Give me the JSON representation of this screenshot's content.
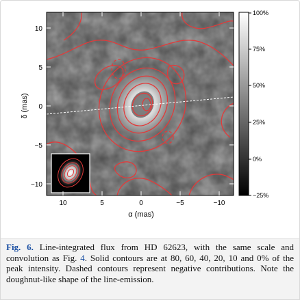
{
  "figure": {
    "x_axis": {
      "label": "α (mas)",
      "ticks": [
        "10",
        "5",
        "0",
        "−5",
        "−10"
      ]
    },
    "y_axis": {
      "label": "δ (mas)",
      "ticks": [
        "10",
        "5",
        "0",
        "−5",
        "−10"
      ]
    },
    "colorbar": {
      "ticks": [
        "100%",
        "75%",
        "50%",
        "25%",
        "0%",
        "−25%"
      ],
      "colors": [
        "#000000",
        "#ffffff"
      ]
    },
    "contour_color": "#e23a3a",
    "baseline_color": "#ffffff"
  },
  "caption": {
    "label": "Fig. 6.",
    "text_1": " Line-integrated flux from HD 62623, with the same scale and convolution as Fig. ",
    "fig_ref": "4",
    "text_2": ". Solid contours are at 80, 60, 40, 20, 10 and 0% of the peak intensity. Dashed contours represent negative contributions. Note the doughnut-like shape of the line-emission."
  }
}
